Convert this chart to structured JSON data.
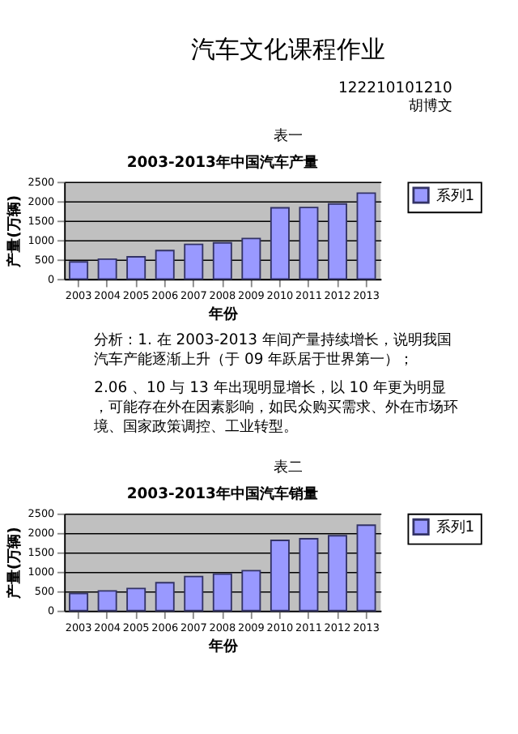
{
  "chart_data": [
    {
      "type": "bar",
      "title": "2003-2013年中国汽车产量",
      "xlabel": "年份",
      "ylabel": "产量(万辆)",
      "annotations": [
        "汽车文化课程作业",
        "122210101210",
        "胡博文",
        "表一"
      ],
      "categories": [
        "2003",
        "2004",
        "2005",
        "2006",
        "2007",
        "2008",
        "2009",
        "2010",
        "2011",
        "2012",
        "2013"
      ],
      "series": [
        {
          "name": "系列1",
          "color": "#9999ff",
          "values": [
            440,
            510,
            570,
            730,
            890,
            930,
            1040,
            1830,
            1840,
            1930,
            2210
          ]
        }
      ],
      "ylim": [
        0,
        2500
      ],
      "yticks": [
        0,
        500,
        1000,
        1500,
        2000,
        2500
      ],
      "grid": "y",
      "legend": "right"
    },
    {
      "type": "bar",
      "title": "2003-2013年中国汽车销量",
      "xlabel": "年份",
      "ylabel": "产量(万辆)",
      "annotations": [
        "分析：1. 在 2003-2013 年间产量持续增长，说明我国汽车产能逐渐上升（于 09 年跃居于世界第一）；",
        "2.06 、10 与 13 年出现明显增长，以 10 年更为明显，可能存在外在因素影响，如民众购买需求、外在市场环境、国家政策调控、工业转型。",
        "表二"
      ],
      "categories": [
        "2003",
        "2004",
        "2005",
        "2006",
        "2007",
        "2008",
        "2009",
        "2010",
        "2011",
        "2012",
        "2013"
      ],
      "series": [
        {
          "name": "系列1",
          "color": "#9999ff",
          "values": [
            440,
            510,
            570,
            720,
            880,
            940,
            1030,
            1810,
            1850,
            1930,
            2200
          ]
        }
      ],
      "ylim": [
        0,
        2500
      ],
      "yticks": [
        0,
        500,
        1000,
        1500,
        2000,
        2500
      ],
      "grid": "y",
      "legend": "right"
    }
  ]
}
